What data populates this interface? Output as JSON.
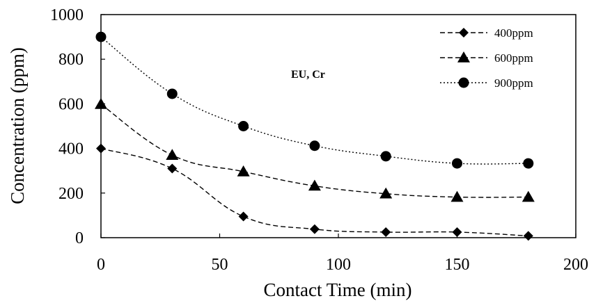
{
  "chart_data": {
    "type": "line",
    "xlabel": "Contact Time (min)",
    "ylabel": "Concentration (ppm)",
    "xlim": [
      0,
      200
    ],
    "ylim": [
      0,
      1000
    ],
    "xticks": [
      0,
      50,
      100,
      150,
      200
    ],
    "yticks": [
      0,
      200,
      400,
      600,
      800,
      1000
    ],
    "grid": false,
    "legend_position": "top-right",
    "annotation": "EU, Cr",
    "x": [
      0,
      30,
      60,
      90,
      120,
      150,
      180
    ],
    "series": [
      {
        "name": "400ppm",
        "marker": "diamond",
        "line_style": "dashed",
        "values": [
          400,
          310,
          95,
          38,
          25,
          25,
          8
        ]
      },
      {
        "name": "600ppm",
        "marker": "triangle",
        "line_style": "dashed",
        "values": [
          598,
          370,
          296,
          232,
          197,
          182,
          182
        ]
      },
      {
        "name": "900ppm",
        "marker": "circle",
        "line_style": "dotted",
        "values": [
          900,
          645,
          500,
          412,
          365,
          333,
          333
        ]
      }
    ]
  }
}
